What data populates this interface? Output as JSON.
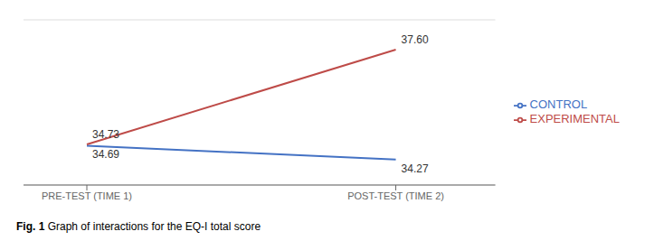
{
  "chart_data": {
    "type": "line",
    "title": "Fig. 1",
    "subtitle": "Graph of interactions for the EQ-I total score",
    "categories": [
      "PRE-TEST (TIME 1)",
      "POST-TEST (TIME 2)"
    ],
    "series": [
      {
        "name": "CONTROL",
        "color": "#4472C4",
        "values": [
          34.69,
          34.27
        ],
        "value_labels": [
          "34.69",
          "34.27"
        ]
      },
      {
        "name": "EXPERIMENTAL",
        "color": "#BE4B48",
        "values": [
          34.73,
          37.6
        ],
        "value_labels": [
          "34.73",
          "37.60"
        ]
      }
    ],
    "ylim": [
      33.5,
      38.5
    ],
    "yticks": [
      33.5,
      34,
      34.5,
      35,
      35.5,
      36,
      36.5,
      37,
      37.5,
      38,
      38.5
    ],
    "grid": true,
    "legend": "right",
    "data_labels": true,
    "tick_labels": "x"
  }
}
